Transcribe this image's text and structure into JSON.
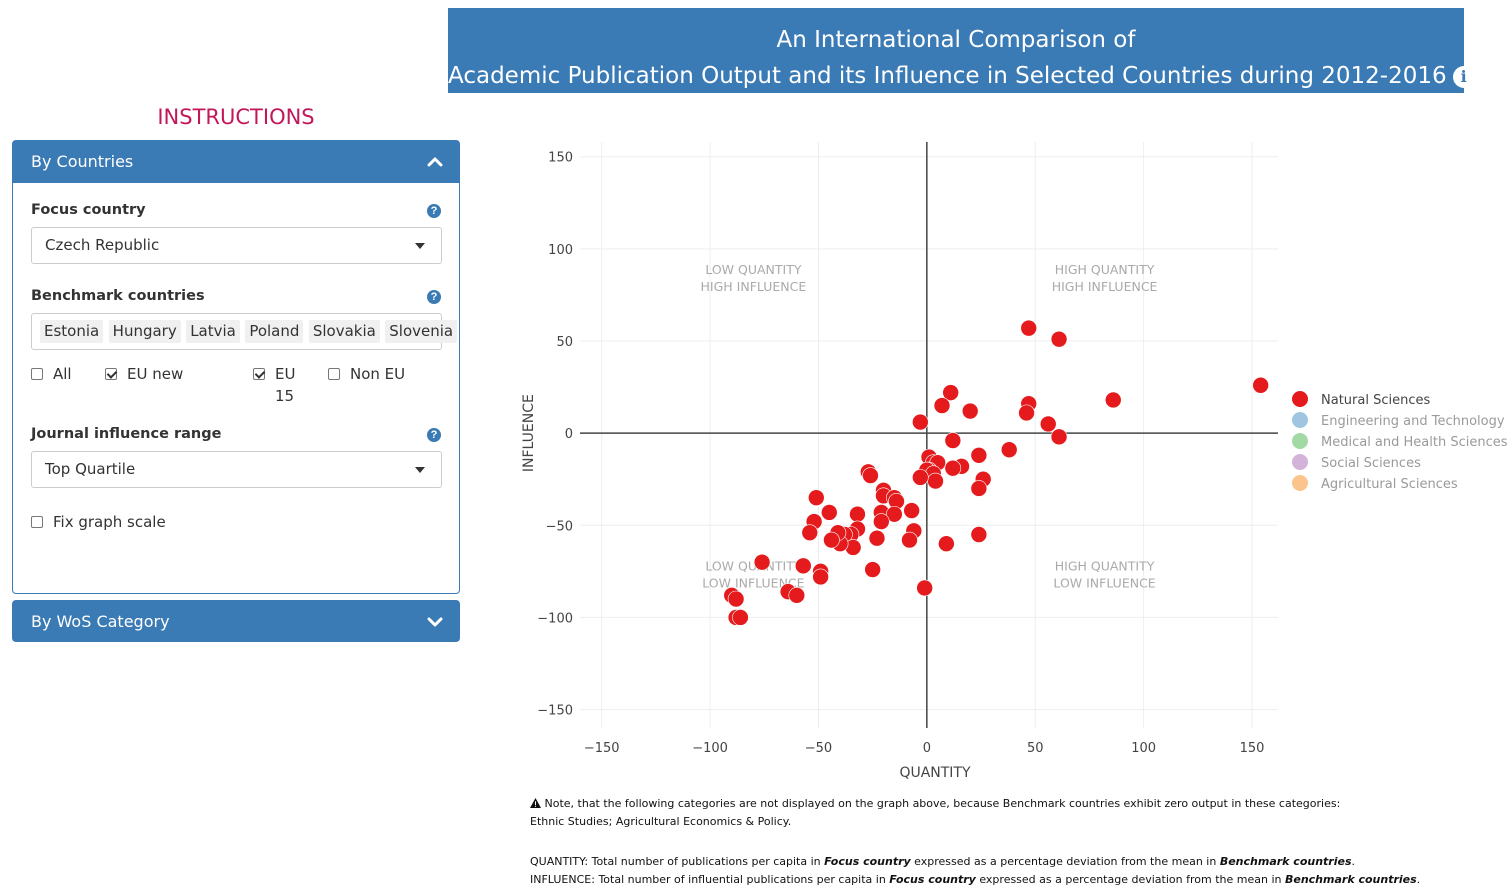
{
  "header": {
    "line1": "An International Comparison of",
    "line2": "Academic Publication Output and its Influence in Selected Countries during 2012-2016",
    "info_icon": "info-circle-icon"
  },
  "sidebar": {
    "instructions_label": "INSTRUCTIONS",
    "by_countries": {
      "title": "By Countries",
      "focus_label": "Focus country",
      "focus_value": "Czech Republic",
      "benchmark_label": "Benchmark countries",
      "benchmark_countries": [
        "Estonia",
        "Hungary",
        "Latvia",
        "Poland",
        "Slovakia",
        "Slovenia"
      ],
      "checkboxes": [
        {
          "label": "All",
          "checked": false
        },
        {
          "label": "EU new",
          "checked": true
        },
        {
          "label": "EU 15",
          "checked": true
        },
        {
          "label": "Non EU",
          "checked": false
        }
      ],
      "influence_label": "Journal influence range",
      "influence_value": "Top Quartile",
      "fix_scale_label": "Fix graph scale",
      "fix_scale_checked": false
    },
    "by_wos": {
      "title": "By WoS Category"
    }
  },
  "notes": {
    "warning_line1": "Note, that the following categories are not displayed on the graph above, because Benchmark countries exhibit zero output in these categories:",
    "warning_line2": "Ethnic Studies; Agricultural Economics & Policy.",
    "quantity_prefix": "QUANTITY: Total number of publications per capita in ",
    "influence_prefix": "INFLUENCE: Total number of influential publications per capita in ",
    "focus_term": "Focus country",
    "middle": " expressed as a percentage deviation from the mean in ",
    "benchmark_term": "Benchmark countries",
    "end": "."
  },
  "chart_data": {
    "type": "scatter",
    "xlabel": "QUANTITY",
    "ylabel": "INFLUENCE",
    "xlim": [
      -160,
      162
    ],
    "ylim": [
      -160,
      158
    ],
    "xticks": [
      -150,
      -100,
      -50,
      0,
      50,
      100,
      150
    ],
    "yticks": [
      150,
      100,
      50,
      0,
      -50,
      -100,
      -150
    ],
    "tick_labels_x": [
      "−150",
      "−100",
      "−50",
      "0",
      "50",
      "100",
      "150"
    ],
    "tick_labels_y": [
      "150",
      "100",
      "50",
      "0",
      "−50",
      "−100",
      "−150"
    ],
    "grid": true,
    "quadrant_labels": [
      {
        "line1": "LOW QUANTITY",
        "line2": "HIGH INFLUENCE",
        "x": -80,
        "y": 82
      },
      {
        "line1": "HIGH QUANTITY",
        "line2": "HIGH INFLUENCE",
        "x": 82,
        "y": 82
      },
      {
        "line1": "LOW QUANTITY",
        "line2": "LOW INFLUENCE",
        "x": -80,
        "y": -79
      },
      {
        "line1": "HIGH QUANTITY",
        "line2": "LOW INFLUENCE",
        "x": 82,
        "y": -79
      }
    ],
    "legend_position": "right",
    "legend": [
      {
        "name": "Natural Sciences",
        "color": "#e41a1c",
        "active": true
      },
      {
        "name": "Engineering and Technology",
        "color": "#9fc5e0",
        "active": false
      },
      {
        "name": "Medical and Health Sciences",
        "color": "#a3d9a5",
        "active": false
      },
      {
        "name": "Social Sciences",
        "color": "#d3b3d9",
        "active": false
      },
      {
        "name": "Agricultural Sciences",
        "color": "#fcc48d",
        "active": false
      }
    ],
    "series": [
      {
        "name": "Natural Sciences",
        "color": "#e41a1c",
        "points": [
          [
            154,
            26
          ],
          [
            47,
            57
          ],
          [
            61,
            51
          ],
          [
            86,
            18
          ],
          [
            47,
            16
          ],
          [
            46,
            11
          ],
          [
            56,
            5
          ],
          [
            61,
            -2
          ],
          [
            11,
            22
          ],
          [
            20,
            12
          ],
          [
            7,
            15
          ],
          [
            -3,
            6
          ],
          [
            12,
            -4
          ],
          [
            38,
            -9
          ],
          [
            24,
            -12
          ],
          [
            16,
            -18
          ],
          [
            12,
            -19
          ],
          [
            26,
            -25
          ],
          [
            24,
            -30
          ],
          [
            24,
            -55
          ],
          [
            1,
            -13
          ],
          [
            3,
            -16
          ],
          [
            5,
            -16
          ],
          [
            1,
            -20
          ],
          [
            0,
            -20
          ],
          [
            3,
            -22
          ],
          [
            4,
            -26
          ],
          [
            -3,
            -24
          ],
          [
            -27,
            -21
          ],
          [
            -26,
            -23
          ],
          [
            -20,
            -31
          ],
          [
            -20,
            -34
          ],
          [
            -15,
            -35
          ],
          [
            -14,
            -37
          ],
          [
            -21,
            -43
          ],
          [
            -15,
            -44
          ],
          [
            -7,
            -42
          ],
          [
            -21,
            -48
          ],
          [
            -6,
            -53
          ],
          [
            -8,
            -58
          ],
          [
            -23,
            -57
          ],
          [
            9,
            -60
          ],
          [
            -32,
            -44
          ],
          [
            -32,
            -52
          ],
          [
            -35,
            -55
          ],
          [
            -38,
            -55
          ],
          [
            -34,
            -62
          ],
          [
            -40,
            -60
          ],
          [
            -41,
            -54
          ],
          [
            -44,
            -58
          ],
          [
            -45,
            -43
          ],
          [
            -51,
            -35
          ],
          [
            -52,
            -48
          ],
          [
            -54,
            -54
          ],
          [
            -25,
            -74
          ],
          [
            -1,
            -84
          ],
          [
            -57,
            -72
          ],
          [
            -49,
            -75
          ],
          [
            -49,
            -78
          ],
          [
            -76,
            -70
          ],
          [
            -64,
            -86
          ],
          [
            -60,
            -88
          ],
          [
            -90,
            -88
          ],
          [
            -88,
            -90
          ],
          [
            -88,
            -100
          ],
          [
            -86,
            -100
          ]
        ]
      }
    ]
  }
}
